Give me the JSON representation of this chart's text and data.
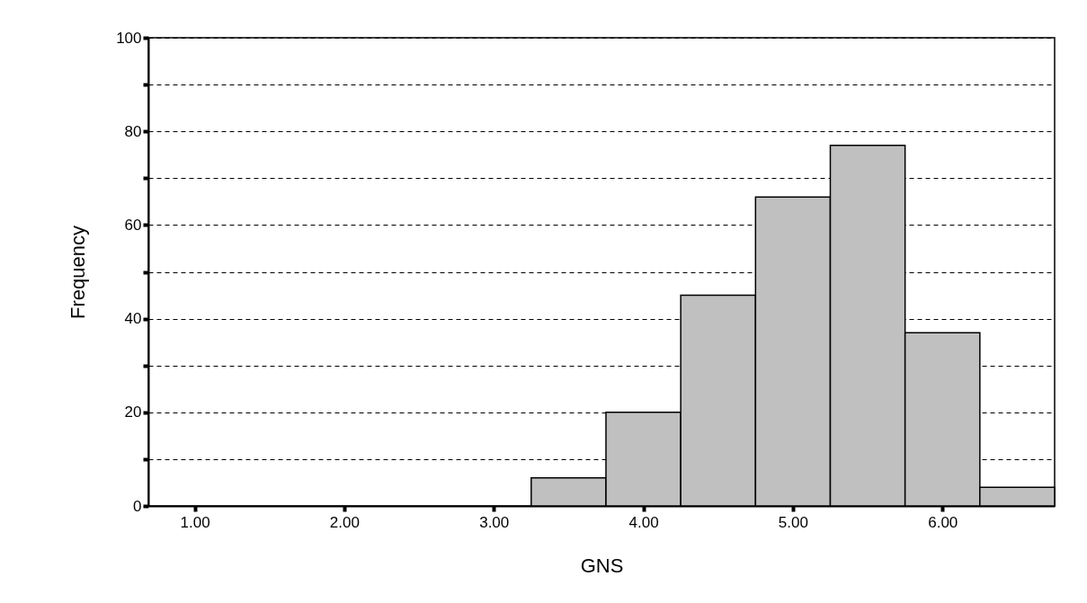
{
  "chart_data": {
    "type": "histogram",
    "xlabel": "GNS",
    "ylabel": "Frequency",
    "bins": [
      3.25,
      3.75,
      4.25,
      4.75,
      5.25,
      5.75,
      6.25,
      6.75
    ],
    "values": [
      6,
      20,
      45,
      66,
      77,
      37,
      4
    ],
    "color": "#c0c0c0",
    "xlim": [
      0.69,
      6.75
    ],
    "xticks": [
      {
        "value": 1,
        "label": "1.00"
      },
      {
        "value": 2,
        "label": "2.00"
      },
      {
        "value": 3,
        "label": "3.00"
      },
      {
        "value": 4,
        "label": "4.00"
      },
      {
        "value": 5,
        "label": "5.00"
      },
      {
        "value": 6,
        "label": "6.00"
      }
    ],
    "ylim": [
      0,
      100
    ],
    "yticks": [
      0,
      {
        "value": 10,
        "label": null
      },
      20,
      {
        "value": 30,
        "label": null
      },
      40,
      {
        "value": 50,
        "label": null
      },
      60,
      {
        "value": 70,
        "label": null
      },
      80,
      {
        "value": 90,
        "label": null
      },
      100
    ],
    "grid": "y"
  }
}
